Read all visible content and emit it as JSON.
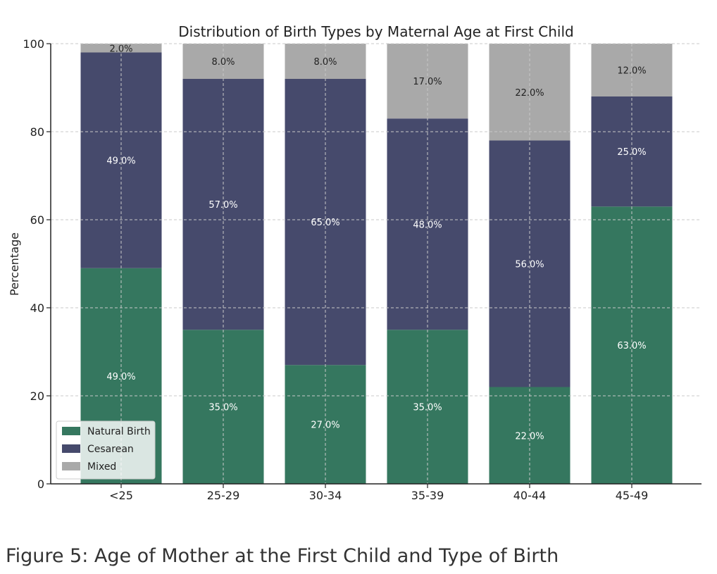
{
  "chart_data": {
    "type": "bar",
    "stacked": true,
    "title": "Distribution of Birth Types by Maternal Age at First Child",
    "xlabel": "",
    "ylabel": "Percentage",
    "categories": [
      "<25",
      "25-29",
      "30-34",
      "35-39",
      "40-44",
      "45-49"
    ],
    "ylim": [
      0,
      100
    ],
    "yticks": [
      0,
      20,
      40,
      60,
      80,
      100
    ],
    "grid": true,
    "legend_position": "bottom-left",
    "series": [
      {
        "name": "Natural Birth",
        "color": "#35775f",
        "label_color": "#ffffff",
        "values": [
          49,
          35,
          27,
          35,
          22,
          63
        ],
        "labels": [
          "49.0%",
          "35.0%",
          "27.0%",
          "35.0%",
          "22.0%",
          "63.0%"
        ]
      },
      {
        "name": "Cesarean",
        "color": "#464a6c",
        "label_color": "#ffffff",
        "values": [
          49,
          57,
          65,
          48,
          56,
          25
        ],
        "labels": [
          "49.0%",
          "57.0%",
          "65.0%",
          "48.0%",
          "56.0%",
          "25.0%"
        ]
      },
      {
        "name": "Mixed",
        "color": "#a9a9a9",
        "label_color": "#222222",
        "values": [
          2,
          8,
          8,
          17,
          22,
          12
        ],
        "labels": [
          "2.0%",
          "8.0%",
          "8.0%",
          "17.0%",
          "22.0%",
          "12.0%"
        ]
      }
    ]
  },
  "caption": "Figure 5: Age of Mother at the First Child and Type of Birth"
}
